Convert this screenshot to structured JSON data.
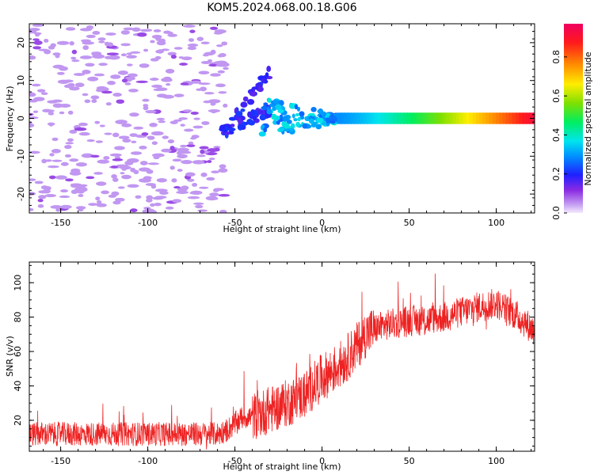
{
  "figure": {
    "title": "KOM5.2024.068.00.18.G06"
  },
  "colors": {
    "snr_line": "#ee2222",
    "axis": "#000000"
  },
  "chart_data": [
    {
      "type": "heatmap",
      "name": "spectrogram",
      "title": "",
      "xlabel": "Height of straight line (km)",
      "ylabel": "Frequency (Hz)",
      "xlim": [
        -168,
        122
      ],
      "ylim": [
        -25,
        25
      ],
      "xticks": [
        -150,
        -100,
        -50,
        0,
        50,
        100
      ],
      "yticks": [
        -20,
        -10,
        0,
        10,
        20
      ],
      "colorbar": {
        "label": "Normalized spectral amplitude",
        "range": [
          0,
          0.97
        ],
        "ticks": [
          0.0,
          0.2,
          0.4,
          0.6,
          0.8
        ],
        "colormap": "rainbow (white-violet low to red-magenta high)"
      },
      "features": [
        {
          "description": "scattered low-amplitude noise patches",
          "x_range": [
            -168,
            -55
          ],
          "y_range": [
            -25,
            25
          ],
          "amplitude": 0.05
        },
        {
          "description": "chevron-shaped emission fanning toward frequency",
          "x_range": [
            -58,
            -30
          ],
          "y_range": [
            -7,
            13
          ],
          "amplitude": 0.15
        },
        {
          "description": "broadening cluster near zero frequency",
          "x_range": [
            -35,
            10
          ],
          "y_range": [
            -5,
            4
          ],
          "amplitude": 0.25
        },
        {
          "description": "narrow band at 0 Hz",
          "x_range": [
            10,
            122
          ],
          "y_range": [
            -1.5,
            1.5
          ],
          "amplitude_start": 0.3,
          "amplitude_end": 0.95
        }
      ]
    },
    {
      "type": "line",
      "name": "snr",
      "title": "",
      "xlabel": "Height of straight line (km)",
      "ylabel": "SNR (v/v)",
      "xlim": [
        -168,
        122
      ],
      "ylim": [
        2,
        112
      ],
      "xticks": [
        -150,
        -100,
        -50,
        0,
        50,
        100
      ],
      "yticks": [
        20,
        40,
        60,
        80,
        100
      ],
      "series": [
        {
          "color": "#ee2222",
          "x": [
            -168,
            -160,
            -150,
            -140,
            -130,
            -120,
            -110,
            -100,
            -90,
            -80,
            -70,
            -60,
            -55,
            -50,
            -45,
            -40,
            -35,
            -30,
            -25,
            -20,
            -15,
            -10,
            -5,
            0,
            5,
            10,
            15,
            20,
            25,
            30,
            35,
            40,
            50,
            60,
            70,
            80,
            90,
            100,
            105,
            110,
            115,
            122
          ],
          "y": [
            12,
            12,
            12,
            12,
            12,
            12,
            12,
            12,
            12,
            12,
            12,
            12,
            14,
            18,
            22,
            22,
            24,
            26,
            28,
            30,
            32,
            35,
            40,
            45,
            48,
            52,
            57,
            63,
            70,
            73,
            75,
            76,
            78,
            78,
            80,
            83,
            86,
            88,
            85,
            82,
            78,
            72
          ]
        }
      ]
    }
  ]
}
